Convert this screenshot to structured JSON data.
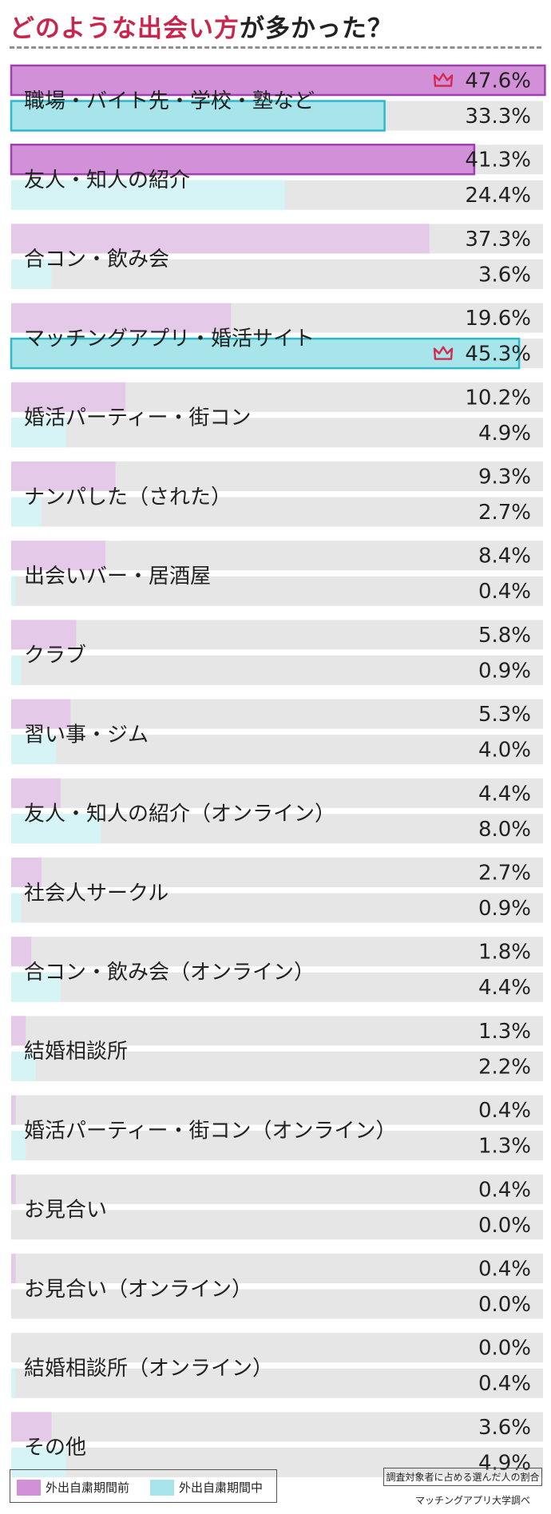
{
  "title": {
    "highlight": "どのような出会い方",
    "rest": "が多かった？"
  },
  "legend": {
    "before_label": "外出自粛期間前",
    "during_label": "外出自粛期間中"
  },
  "note": "調査対象者に占める選んだ人の割合",
  "source": "マッチングアプリ大学調べ",
  "colors": {
    "before": "#e4c9e8",
    "during": "#d6f3f6",
    "before_highlight": "#d290d9",
    "during_highlight": "#a7e5ea",
    "before_border": "#a03fb0",
    "during_border": "#2bb9c9",
    "track": "#e6e6e6",
    "crown": "#d42a50"
  },
  "chart_data": {
    "type": "bar",
    "title": "どのような出会い方が多かった？",
    "xlim": [
      0,
      50
    ],
    "categories": [
      "職場・バイト先・学校・塾など",
      "友人・知人の紹介",
      "合コン・飲み会",
      "マッチングアプリ・婚活サイト",
      "婚活パーティー・街コン",
      "ナンパした（された）",
      "出会いバー・居酒屋",
      "クラブ",
      "習い事・ジム",
      "友人・知人の紹介（オンライン）",
      "社会人サークル",
      "合コン・飲み会（オンライン）",
      "結婚相談所",
      "婚活パーティー・街コン（オンライン）",
      "お見合い",
      "お見合い（オンライン）",
      "結婚相談所（オンライン）",
      "その他"
    ],
    "series": [
      {
        "name": "外出自粛期間前",
        "values": [
          47.6,
          41.3,
          37.3,
          19.6,
          10.2,
          9.3,
          8.4,
          5.8,
          5.3,
          4.4,
          2.7,
          1.8,
          1.3,
          0.4,
          0.4,
          0.4,
          0.0,
          3.6
        ],
        "labels": [
          "47.6%",
          "41.3%",
          "37.3%",
          "19.6%",
          "10.2%",
          "9.3%",
          "8.4%",
          "5.8%",
          "5.3%",
          "4.4%",
          "2.7%",
          "1.8%",
          "1.3%",
          "0.4%",
          "0.4%",
          "0.4%",
          "0.0%",
          "3.6%"
        ],
        "highlight": [
          0,
          1
        ],
        "crown": [
          0
        ]
      },
      {
        "name": "外出自粛期間中",
        "values": [
          33.3,
          24.4,
          3.6,
          45.3,
          4.9,
          2.7,
          0.4,
          0.9,
          4.0,
          8.0,
          0.9,
          4.4,
          2.2,
          1.3,
          0.0,
          0.0,
          0.4,
          4.9
        ],
        "labels": [
          "33.3%",
          "24.4%",
          "3.6%",
          "45.3%",
          "4.9%",
          "2.7%",
          "0.4%",
          "0.9%",
          "4.0%",
          "8.0%",
          "0.9%",
          "4.4%",
          "2.2%",
          "1.3%",
          "0.0%",
          "0.0%",
          "0.4%",
          "4.9%"
        ],
        "highlight": [
          0,
          3
        ],
        "crown": [
          3
        ]
      }
    ]
  }
}
